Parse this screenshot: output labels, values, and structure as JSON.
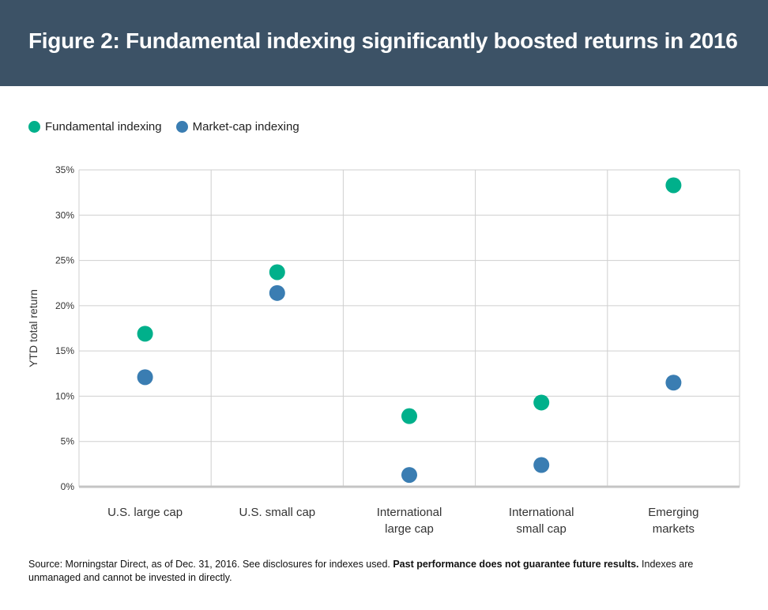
{
  "header": {
    "title": "Figure 2: Fundamental indexing significantly boosted returns in 2016"
  },
  "legend": [
    {
      "label": "Fundamental indexing",
      "color": "#00b08b"
    },
    {
      "label": "Market-cap indexing",
      "color": "#3a7db2"
    }
  ],
  "chart_data": {
    "type": "scatter",
    "categories": [
      [
        "U.S. large cap"
      ],
      [
        "U.S. small cap"
      ],
      [
        "International",
        "large cap"
      ],
      [
        "International",
        "small cap"
      ],
      [
        "Emerging",
        "markets"
      ]
    ],
    "series": [
      {
        "name": "Fundamental indexing",
        "color": "#00b08b",
        "values": [
          16.9,
          23.7,
          7.8,
          9.3,
          33.3
        ]
      },
      {
        "name": "Market-cap indexing",
        "color": "#3a7db2",
        "values": [
          12.1,
          21.4,
          1.3,
          2.4,
          11.5
        ]
      }
    ],
    "ylabel": "YTD total return",
    "ylim": [
      0,
      35
    ],
    "yticks": [
      "0%",
      "5%",
      "10%",
      "15%",
      "20%",
      "25%",
      "30%",
      "35%"
    ],
    "grid": true
  },
  "footer": {
    "source_text": "Source: Morningstar Direct, as of Dec. 31, 2016. See disclosures for indexes used. ",
    "source_bold": "Past performance does not guarantee future results.",
    "source_end": " Indexes are unmanaged and cannot be invested in directly."
  }
}
